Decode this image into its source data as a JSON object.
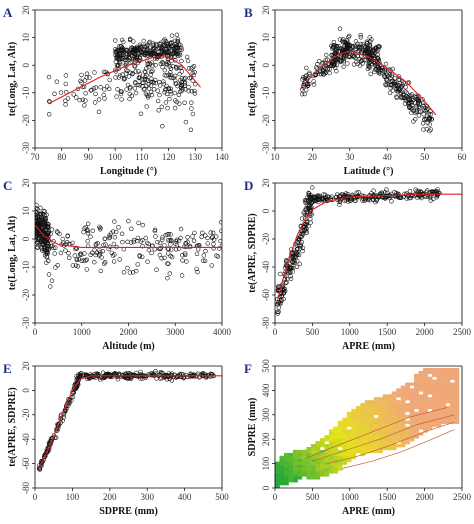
{
  "chart_data": [
    {
      "panel": "A",
      "type": "scatter",
      "xlabel": "Longitude (°)",
      "ylabel": "te(Long, Lat, Alt)",
      "xlim": [
        70,
        140
      ],
      "ylim": [
        -30,
        20
      ],
      "xticks": [
        70,
        80,
        90,
        100,
        110,
        120,
        130,
        140
      ],
      "yticks": [
        -30,
        -20,
        -10,
        0,
        10,
        20
      ],
      "point_cloud": [
        {
          "x": [
            75,
            130
          ],
          "y_center": [
            -12,
            -1
          ],
          "spread": 6,
          "n": 120
        },
        {
          "x": [
            100,
            125
          ],
          "y_center": [
            4,
            6
          ],
          "spread": 3,
          "n": 260
        },
        {
          "x": [
            100,
            130
          ],
          "y_center": [
            -2,
            -10
          ],
          "spread": 9,
          "n": 150
        }
      ],
      "fit_line": {
        "x": [
          75,
          85,
          95,
          105,
          115,
          120,
          125,
          132
        ],
        "y": [
          -14,
          -9,
          -4,
          0,
          3,
          3,
          0,
          -8
        ]
      }
    },
    {
      "panel": "B",
      "type": "scatter",
      "xlabel": "Latitude (°)",
      "ylabel": "te(Long, Lat, Alt)",
      "xlim": [
        10,
        60
      ],
      "ylim": [
        -30,
        20
      ],
      "xticks": [
        10,
        20,
        30,
        40,
        50,
        60
      ],
      "yticks": [
        -30,
        -20,
        -10,
        0,
        10,
        20
      ],
      "point_cloud": [
        {
          "x": [
            17,
            30
          ],
          "y_center": [
            -8,
            6
          ],
          "spread": 3,
          "n": 120
        },
        {
          "x": [
            25,
            38
          ],
          "y_center": [
            6,
            4
          ],
          "spread": 4,
          "n": 200
        },
        {
          "x": [
            35,
            52
          ],
          "y_center": [
            2,
            -20
          ],
          "spread": 4,
          "n": 200
        }
      ],
      "fit_line": {
        "x": [
          17,
          22,
          27,
          30,
          35,
          40,
          45,
          50,
          53
        ],
        "y": [
          -8,
          -1,
          4,
          5,
          3,
          -1,
          -6,
          -13,
          -18
        ]
      }
    },
    {
      "panel": "C",
      "type": "scatter",
      "xlabel": "Altitude (m)",
      "ylabel": "te(Long, Lat, Alt)",
      "xlim": [
        0,
        4000
      ],
      "ylim": [
        -30,
        20
      ],
      "xticks": [
        0,
        1000,
        2000,
        3000,
        4000
      ],
      "yticks": [
        -30,
        -20,
        -10,
        0,
        10,
        20
      ],
      "point_cloud": [
        {
          "x": [
            0,
            300
          ],
          "y_center": [
            5,
            0
          ],
          "spread": 6,
          "n": 200
        },
        {
          "x": [
            200,
            4000
          ],
          "y_center": [
            -3,
            -3
          ],
          "spread": 7,
          "n": 240
        }
      ],
      "fit_line": {
        "x": [
          0,
          200,
          500,
          1000,
          2000,
          3000,
          4000
        ],
        "y": [
          5,
          1,
          -2,
          -3,
          -3,
          -3,
          -3
        ]
      }
    },
    {
      "panel": "D",
      "type": "scatter",
      "xlabel": "APRE (mm)",
      "ylabel": "te(APRE, SDPRE)",
      "xlim": [
        0,
        2500
      ],
      "ylim": [
        -80,
        20
      ],
      "xticks": [
        0,
        500,
        1000,
        1500,
        2000,
        2500
      ],
      "yticks": [
        -80,
        -60,
        -40,
        -20,
        0,
        20
      ],
      "point_cloud": [
        {
          "x": [
            30,
            500
          ],
          "y_center": [
            -65,
            5
          ],
          "spread": 10,
          "n": 180
        },
        {
          "x": [
            400,
            2200
          ],
          "y_center": [
            8,
            12
          ],
          "spread": 3,
          "n": 260
        }
      ],
      "fit_line": {
        "x": [
          30,
          100,
          200,
          300,
          400,
          500,
          700,
          1000,
          1500,
          2000,
          2500
        ],
        "y": [
          -65,
          -50,
          -32,
          -17,
          -6,
          1,
          7,
          10,
          11,
          12,
          12
        ]
      }
    },
    {
      "panel": "E",
      "type": "scatter",
      "xlabel": "SDPRE (mm)",
      "ylabel": "te(APRE, SDPRE)",
      "xlim": [
        0,
        500
      ],
      "ylim": [
        -80,
        20
      ],
      "xticks": [
        0,
        100,
        200,
        300,
        400,
        500
      ],
      "yticks": [
        -80,
        -60,
        -40,
        -20,
        0,
        20
      ],
      "point_cloud": [
        {
          "x": [
            10,
            120
          ],
          "y_center": [
            -65,
            10
          ],
          "spread": 3,
          "n": 120
        },
        {
          "x": [
            110,
            480
          ],
          "y_center": [
            12,
            12
          ],
          "spread": 2,
          "n": 240
        }
      ],
      "fit_line": {
        "x": [
          10,
          40,
          70,
          100,
          120,
          150,
          200,
          300,
          500
        ],
        "y": [
          -65,
          -45,
          -22,
          0,
          9,
          12,
          12,
          12,
          12
        ]
      }
    },
    {
      "panel": "F",
      "type": "heatmap",
      "xlabel": "APRE (mm)",
      "ylabel": "SDPRE (mm)",
      "xlim": [
        0,
        2500
      ],
      "ylim": [
        0,
        500
      ],
      "xticks": [
        0,
        500,
        1000,
        1500,
        2000,
        2500
      ],
      "yticks": [
        0,
        100,
        200,
        300,
        400,
        500
      ],
      "colors": {
        "low": "#22a83a",
        "mid": "#e6e21a",
        "high": "#f0a878"
      }
    }
  ],
  "panels": {
    "A": {
      "letter": "A"
    },
    "B": {
      "letter": "B"
    },
    "C": {
      "letter": "C"
    },
    "D": {
      "letter": "D"
    },
    "E": {
      "letter": "E"
    },
    "F": {
      "letter": "F"
    }
  }
}
